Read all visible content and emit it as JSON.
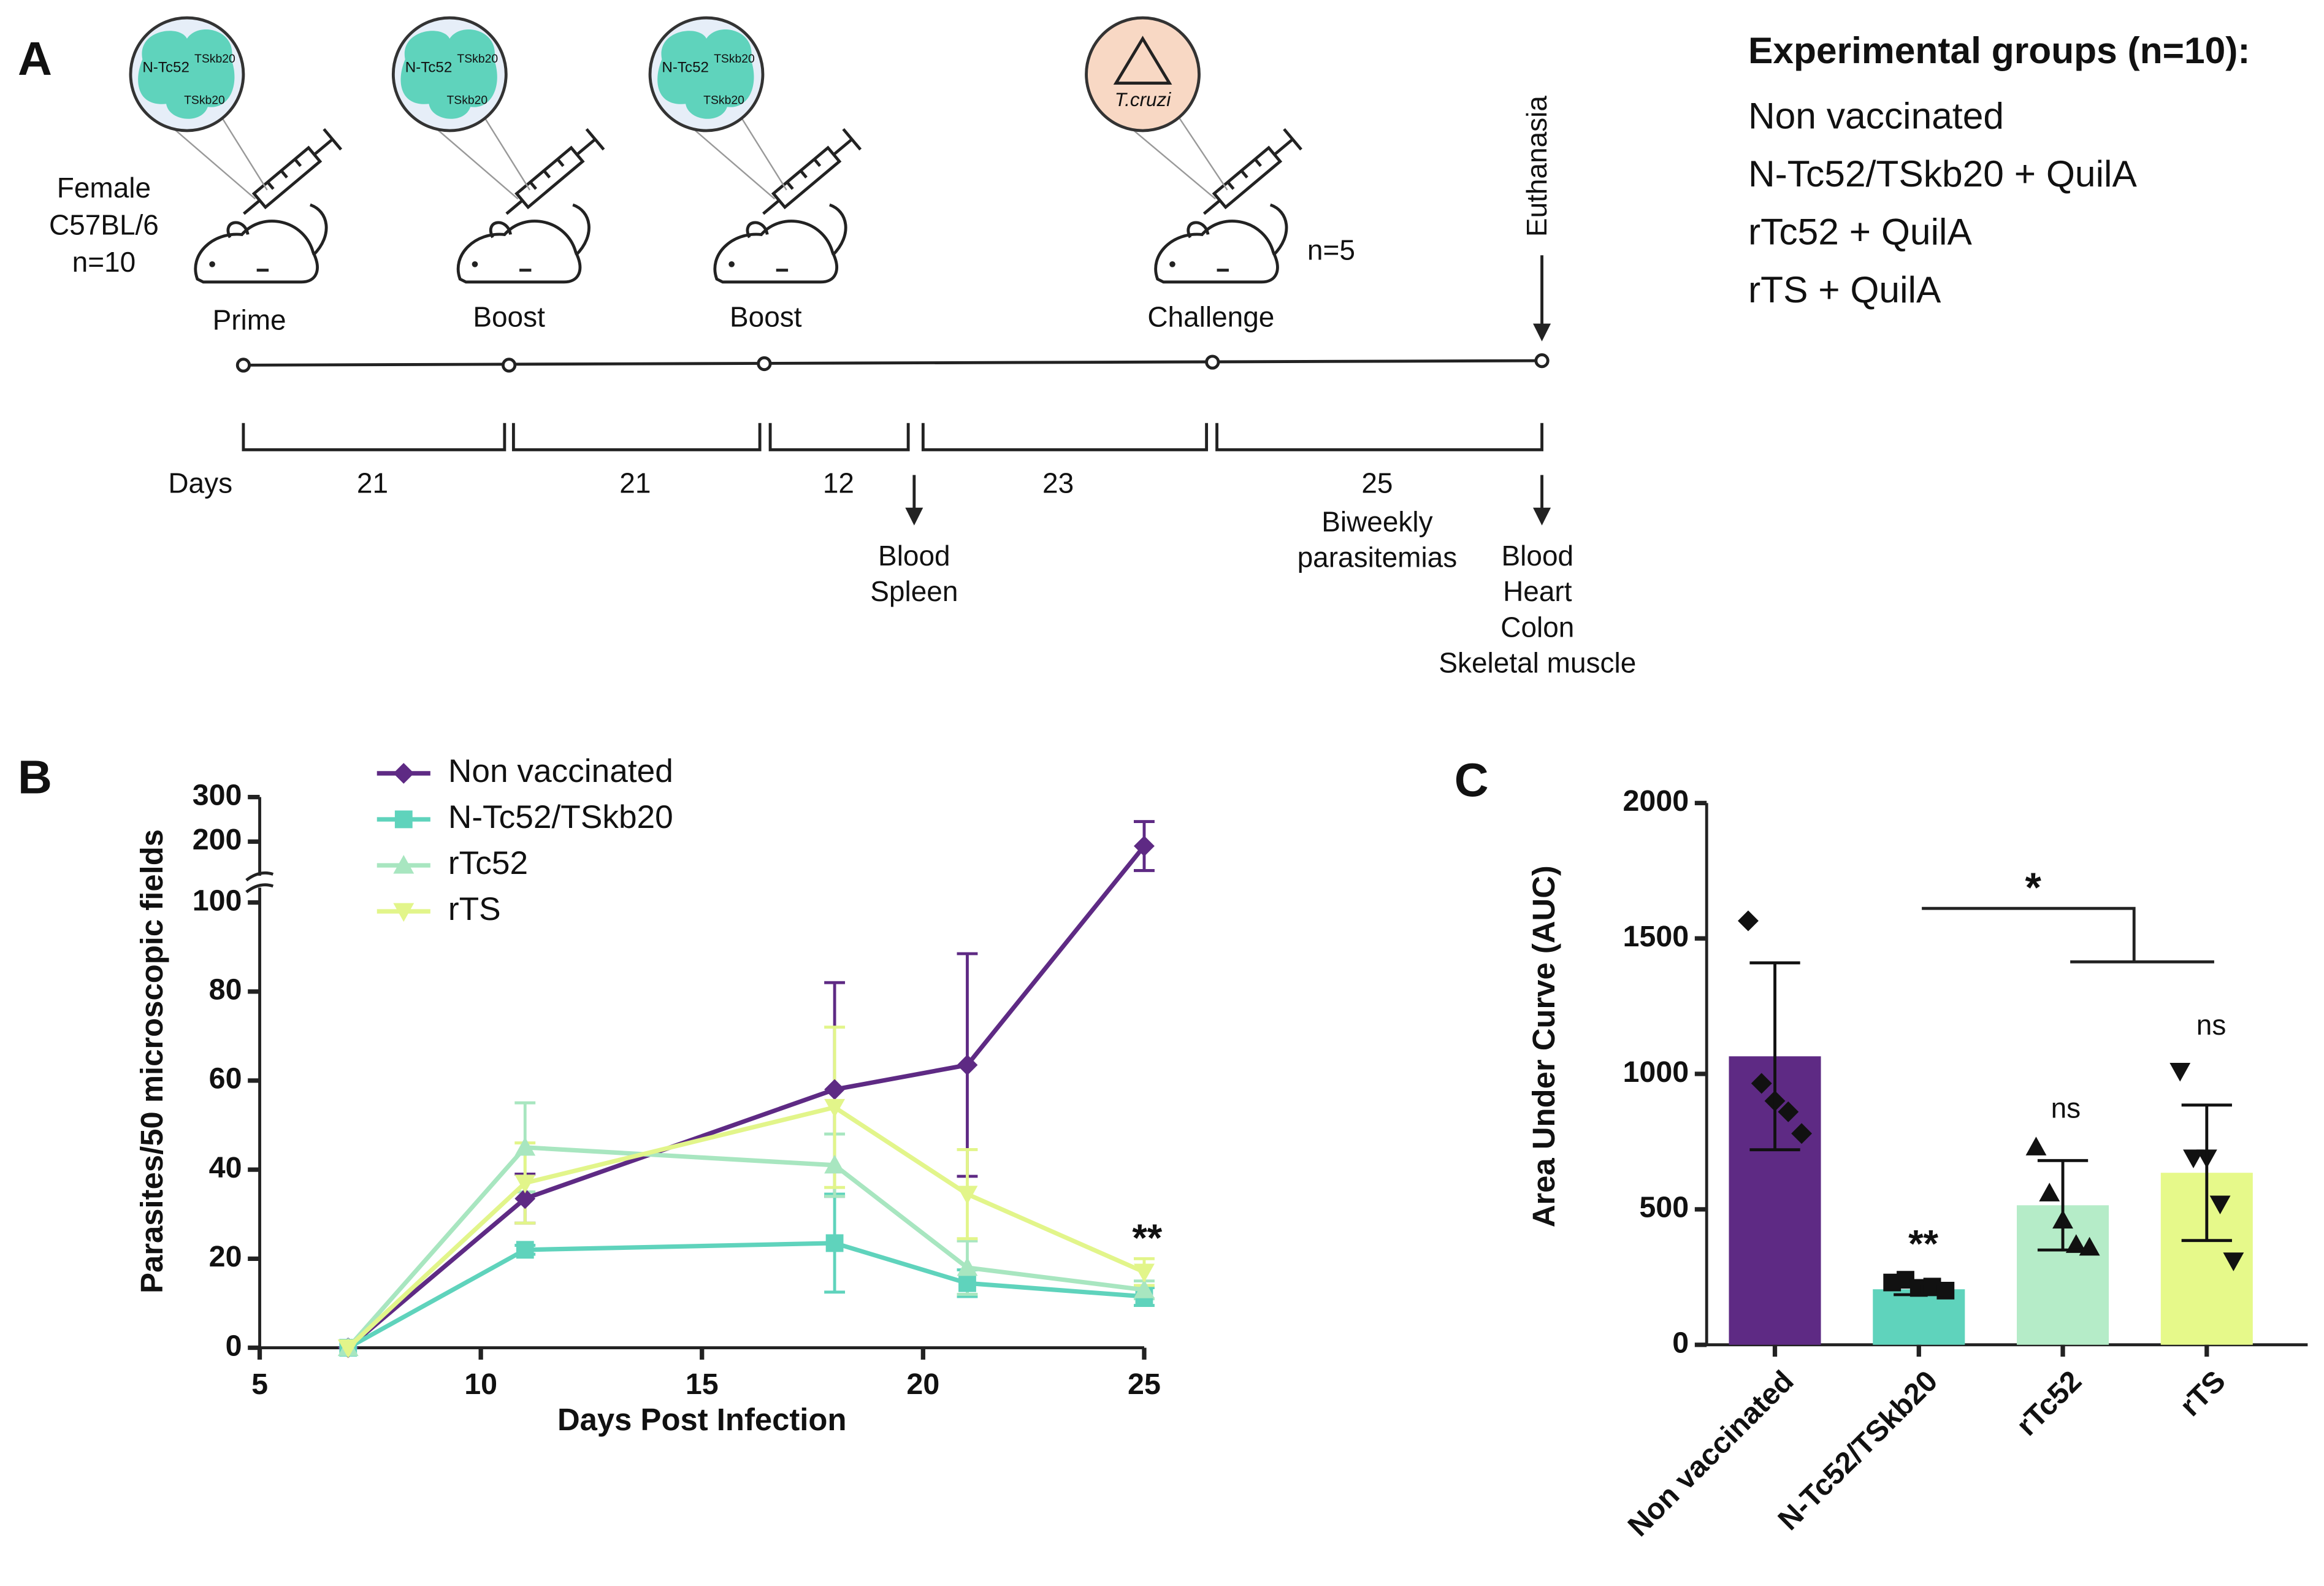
{
  "panel_a": {
    "label": "A",
    "mouse_info": [
      "Female",
      "C57BL/6",
      "n=10"
    ],
    "steps": [
      "Prime",
      "Boost",
      "Boost",
      "Challenge"
    ],
    "antigen": {
      "main": "N-Tc52",
      "sup": "TSkb20",
      "sub": "TSkb20"
    },
    "pathogen": "T.cruzi",
    "n_challenge": "n=5",
    "euthanasia": "Euthanasia",
    "days_label": "Days",
    "intervals": [
      21,
      21,
      12,
      23,
      25
    ],
    "biweekly": [
      "Biweekly",
      "parasitemias"
    ],
    "samples_1": [
      "Blood",
      "Spleen"
    ],
    "samples_2": [
      "Blood",
      "Heart",
      "Colon",
      "Skeletal muscle"
    ],
    "groups_title": "Experimental groups (n=10):",
    "groups": [
      "Non vaccinated",
      "N-Tc52/TSkb20 + QuilA",
      "rTc52 + QuilA",
      "rTS + QuilA"
    ]
  },
  "chart_data": [
    {
      "type": "line",
      "panel": "B",
      "x_label": "Days Post Infection",
      "y_label": "Parasites/50 microscopic fields",
      "x": [
        7,
        11,
        18,
        21,
        25
      ],
      "xlim": [
        5,
        25
      ],
      "xticks": [
        5,
        10,
        15,
        20,
        25
      ],
      "ylim": [
        0,
        100
      ],
      "yticks": [
        0,
        20,
        40,
        60,
        80,
        100
      ],
      "ylim_upper": [
        110,
        300
      ],
      "yticks_upper": [
        200,
        300
      ],
      "series": [
        {
          "name": "Non vaccinated",
          "color": "#5e2a84",
          "marker": "diamond",
          "values": [
            0,
            33.5,
            58,
            63.5,
            190
          ],
          "errors": [
            0,
            5.5,
            24,
            25,
            55
          ]
        },
        {
          "name": "N-Tc52/TSkb20",
          "color": "#5fd3bc",
          "marker": "square",
          "values": [
            0,
            22,
            23.5,
            14.5,
            11.5
          ],
          "errors": [
            0,
            1,
            11,
            3,
            2
          ]
        },
        {
          "name": "rTc52",
          "color": "#a8e6c0",
          "marker": "triangle",
          "values": [
            0,
            45,
            41,
            18,
            13
          ],
          "errors": [
            0,
            10,
            7,
            6,
            2
          ]
        },
        {
          "name": "rTS",
          "color": "#e2f58a",
          "marker": "triangle-down",
          "values": [
            0,
            37,
            54,
            34.5,
            17
          ],
          "errors": [
            0,
            9,
            18,
            10,
            3
          ]
        }
      ],
      "annotations": [
        "**"
      ]
    },
    {
      "type": "bar",
      "panel": "C",
      "y_label": "Area Under Curve (AUC)",
      "categories": [
        "Non vaccinated",
        "N-Tc52/TSkb20",
        "rTc52",
        "rTS"
      ],
      "values": [
        1065,
        205,
        515,
        635
      ],
      "errors": [
        345,
        20,
        165,
        250
      ],
      "colors": [
        "#5e2a84",
        "#5fd3bc",
        "#b5ecc8",
        "#e6f98a"
      ],
      "markers": [
        "diamond",
        "square",
        "triangle",
        "triangle-down"
      ],
      "points": [
        [
          1565,
          965,
          900,
          860,
          780
        ],
        [
          230,
          240,
          210,
          215,
          200
        ],
        [
          730,
          560,
          460,
          370,
          360
        ],
        [
          1010,
          690,
          690,
          520,
          310
        ]
      ],
      "ylim": [
        0,
        2000
      ],
      "yticks": [
        0,
        500,
        1000,
        1500,
        2000
      ],
      "annotations": [
        "**",
        "ns",
        "ns",
        "*"
      ]
    }
  ]
}
